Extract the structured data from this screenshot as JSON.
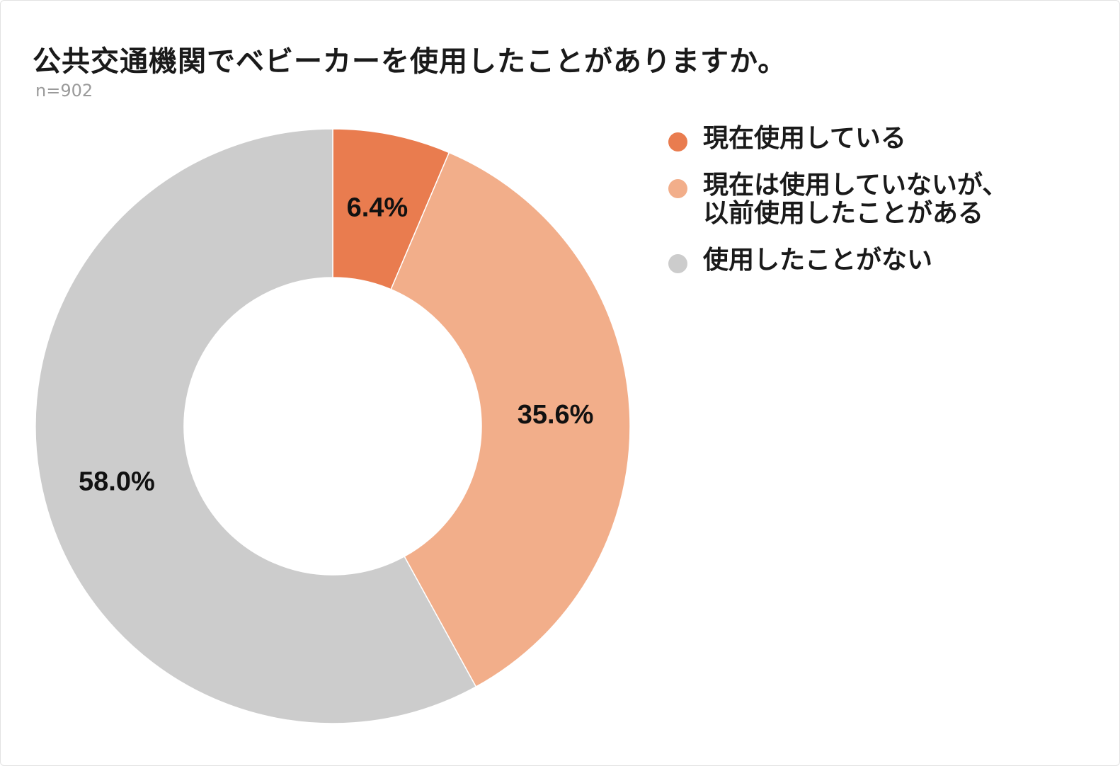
{
  "chart": {
    "title": "公共交通機関でベビーカーを使用したことがありますか。",
    "sample_size": "n=902"
  },
  "chart_data": {
    "type": "pie",
    "title": "公共交通機関でベビーカーを使用したことがありますか。",
    "subtitle": "n=902",
    "donut": true,
    "categories": [
      "現在使用している",
      "現在は使用していないが、\n以前使用したことがある",
      "使用したことがない"
    ],
    "values": [
      6.4,
      35.6,
      58.0
    ],
    "data_labels": [
      "6.4%",
      "35.6%",
      "58.0%"
    ],
    "colors": [
      "#e97c4f",
      "#f2ae8a",
      "#cccccc"
    ],
    "start_angle": "12 o'clock",
    "direction": "clockwise",
    "legend_position": "top-right"
  }
}
